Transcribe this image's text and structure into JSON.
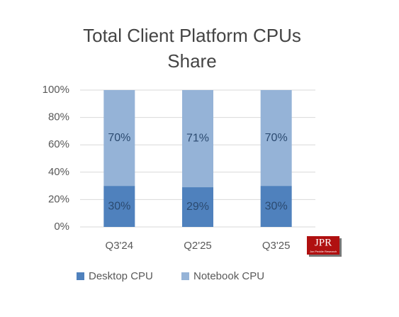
{
  "chart_data": {
    "type": "stacked_bar",
    "title": "Total Client Platform CPUs Share",
    "categories": [
      "Q3'24",
      "Q2'25",
      "Q3'25"
    ],
    "series": [
      {
        "name": "Desktop CPU",
        "color": "#4f81bd",
        "values": [
          30,
          29,
          30
        ],
        "value_labels": [
          "30%",
          "29%",
          "30%"
        ]
      },
      {
        "name": "Notebook CPU",
        "color": "#95b3d7",
        "values": [
          70,
          71,
          70
        ],
        "value_labels": [
          "70%",
          "71%",
          "70%"
        ]
      }
    ],
    "ylim": [
      0,
      100
    ],
    "yticks": [
      {
        "value": 0,
        "label": "0%"
      },
      {
        "value": 20,
        "label": "20%"
      },
      {
        "value": 40,
        "label": "40%"
      },
      {
        "value": 60,
        "label": "60%"
      },
      {
        "value": 80,
        "label": "80%"
      },
      {
        "value": 100,
        "label": "100%"
      }
    ],
    "grid": true,
    "legend": "bottom"
  },
  "logo": {
    "text": "JPR",
    "subtext": "Jon Peddie Research"
  }
}
